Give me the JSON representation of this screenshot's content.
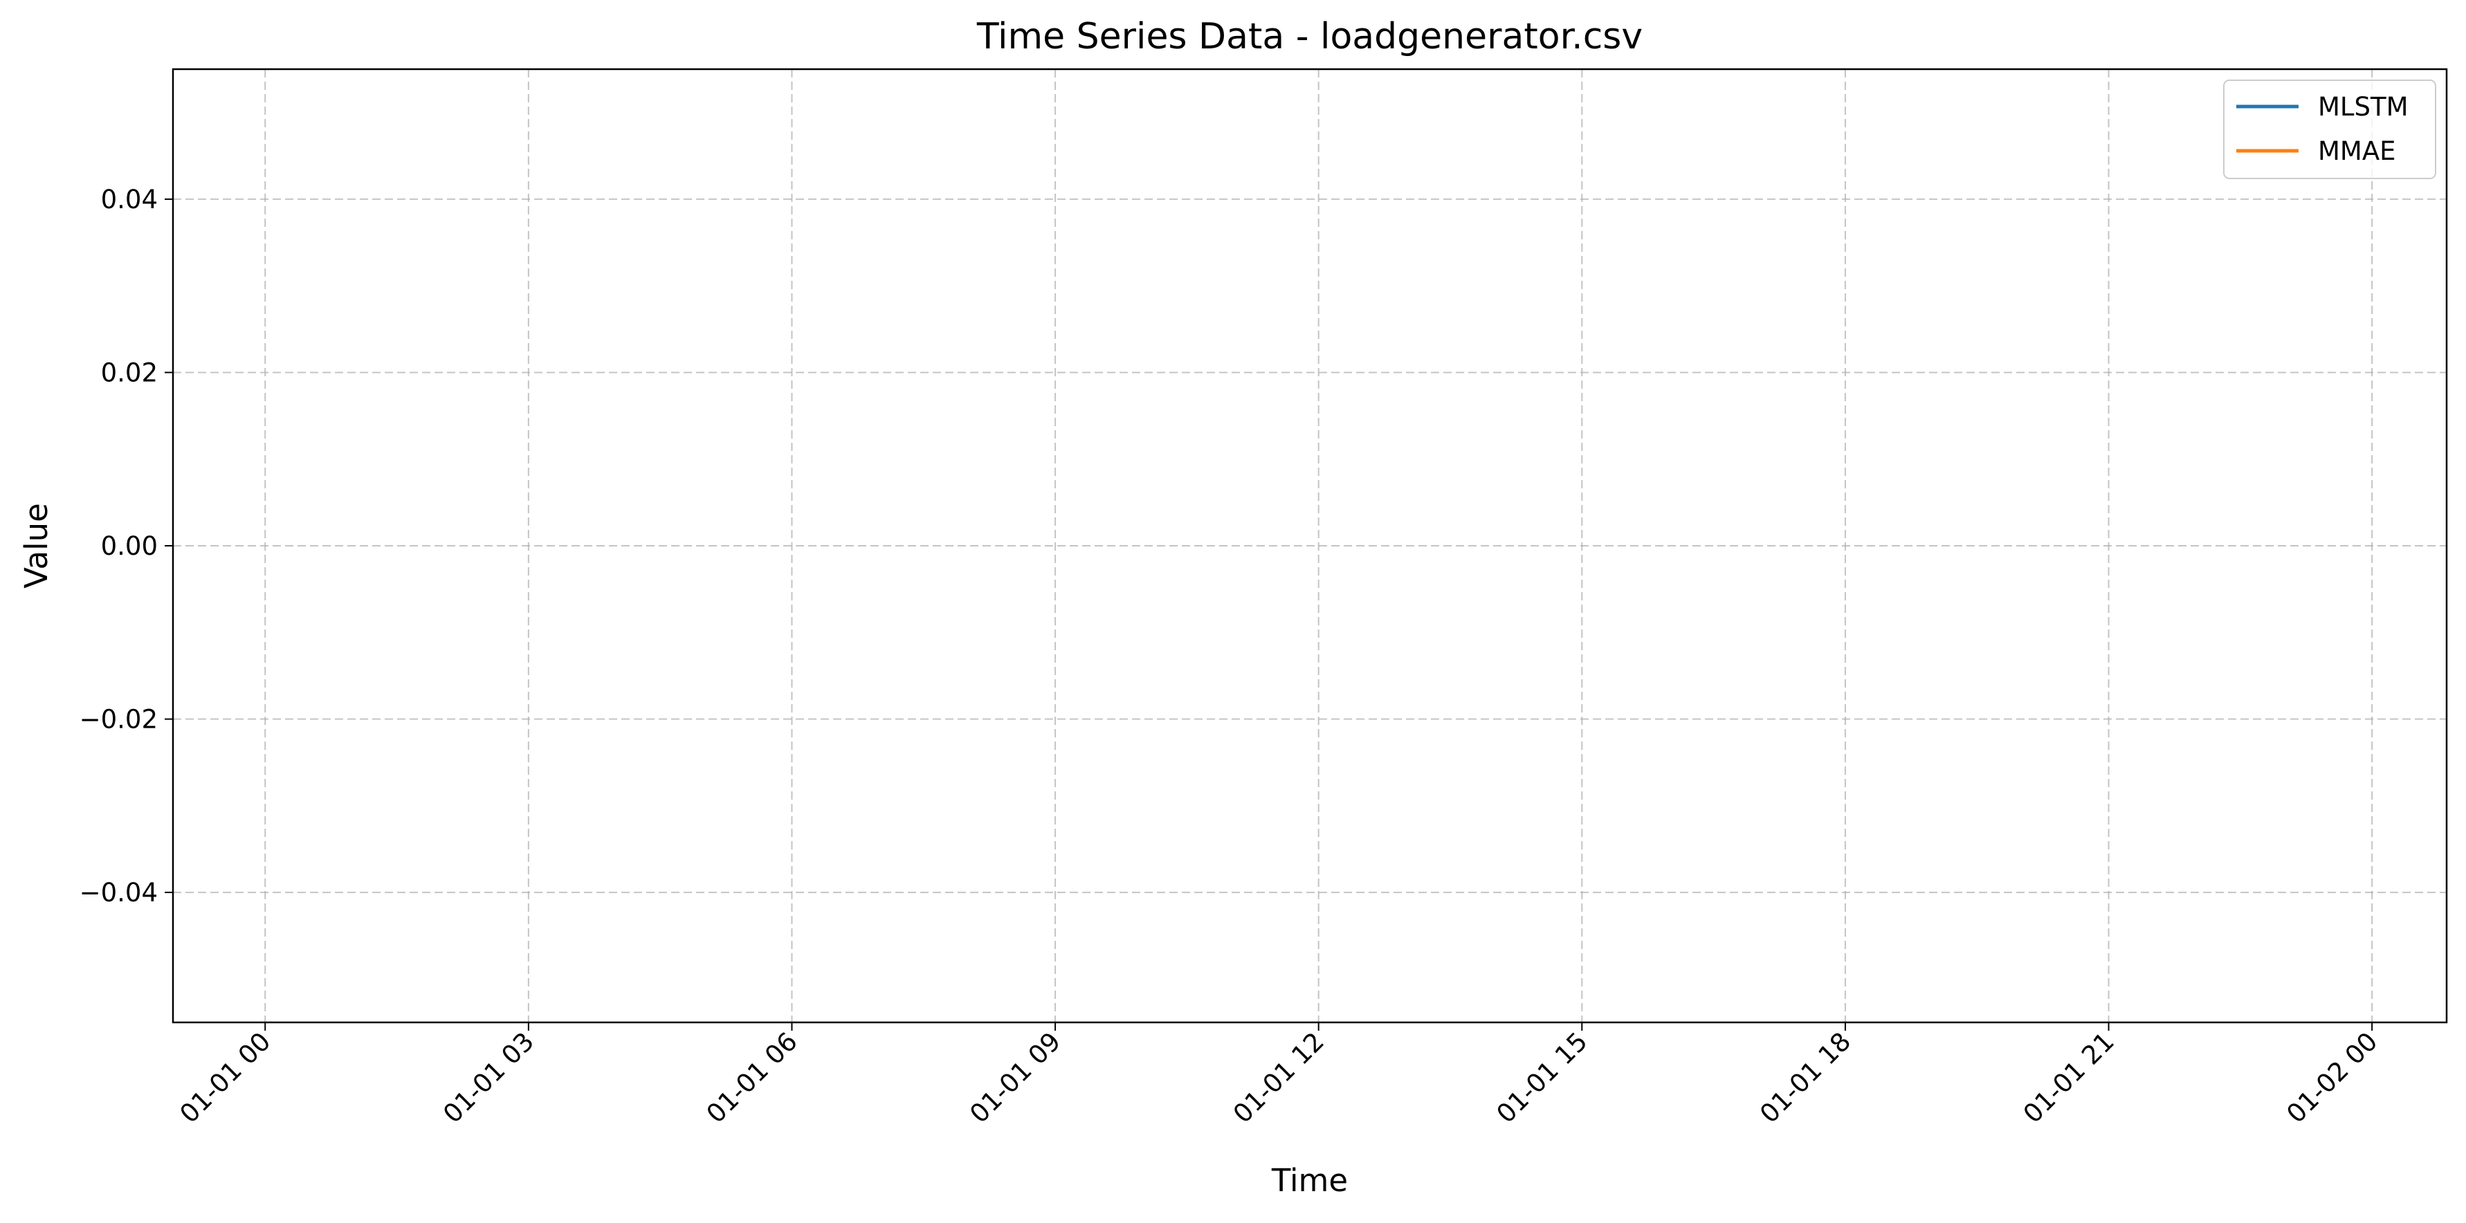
{
  "chart_data": {
    "type": "line",
    "title": "Time Series Data - loadgenerator.csv",
    "xlabel": "Time",
    "ylabel": "Value",
    "x_type": "datetime",
    "x_range": [
      "2023-12-31T22:57:00",
      "2024-01-02T00:51:00"
    ],
    "x_ticks": [
      "01-01 00",
      "01-01 03",
      "01-01 06",
      "01-01 09",
      "01-01 12",
      "01-01 15",
      "01-01 18",
      "01-01 21",
      "01-02 00"
    ],
    "y_ticks": [
      "0.04",
      "0.02",
      "0.00",
      "−0.02",
      "−0.04"
    ],
    "y_tick_values": [
      0.04,
      0.02,
      0.0,
      -0.02,
      -0.04
    ],
    "ylim": [
      -0.055,
      0.055
    ],
    "grid": true,
    "grid_style": "dashed",
    "legend_position": "top-right",
    "series": [
      {
        "name": "MLSTM",
        "color": "#1f77b4",
        "x": [],
        "y": []
      },
      {
        "name": "MMAE",
        "color": "#ff7f0e",
        "x": [],
        "y": []
      }
    ]
  }
}
